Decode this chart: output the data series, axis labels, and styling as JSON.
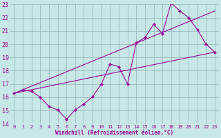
{
  "xlabel": "Windchill (Refroidissement éolien,°C)",
  "xlim": [
    -0.5,
    23.5
  ],
  "ylim": [
    14,
    23
  ],
  "xticks": [
    0,
    1,
    2,
    3,
    4,
    5,
    6,
    7,
    8,
    9,
    10,
    11,
    12,
    13,
    14,
    15,
    16,
    17,
    18,
    19,
    20,
    21,
    22,
    23
  ],
  "yticks": [
    14,
    15,
    16,
    17,
    18,
    19,
    20,
    21,
    22,
    23
  ],
  "bg_color": "#c8e8e8",
  "line_color": "#990099",
  "grid_color": "#99bbbb",
  "series1_x": [
    0,
    1,
    2,
    3,
    4,
    5,
    6,
    7,
    8,
    9,
    10,
    11,
    12,
    13,
    14,
    15,
    16,
    17,
    18,
    19,
    20,
    21,
    22,
    23
  ],
  "series1_y": [
    16.3,
    16.55,
    16.45,
    16.0,
    15.3,
    15.05,
    14.35,
    15.05,
    15.5,
    16.05,
    17.0,
    18.5,
    18.3,
    17.0,
    20.1,
    20.5,
    21.5,
    20.8,
    23.1,
    22.5,
    22.0,
    21.1,
    20.0,
    19.4
  ],
  "series2_x": [
    0,
    23
  ],
  "series2_y": [
    16.3,
    19.4
  ],
  "series3_x": [
    0,
    23
  ],
  "series3_y": [
    16.3,
    22.5
  ]
}
